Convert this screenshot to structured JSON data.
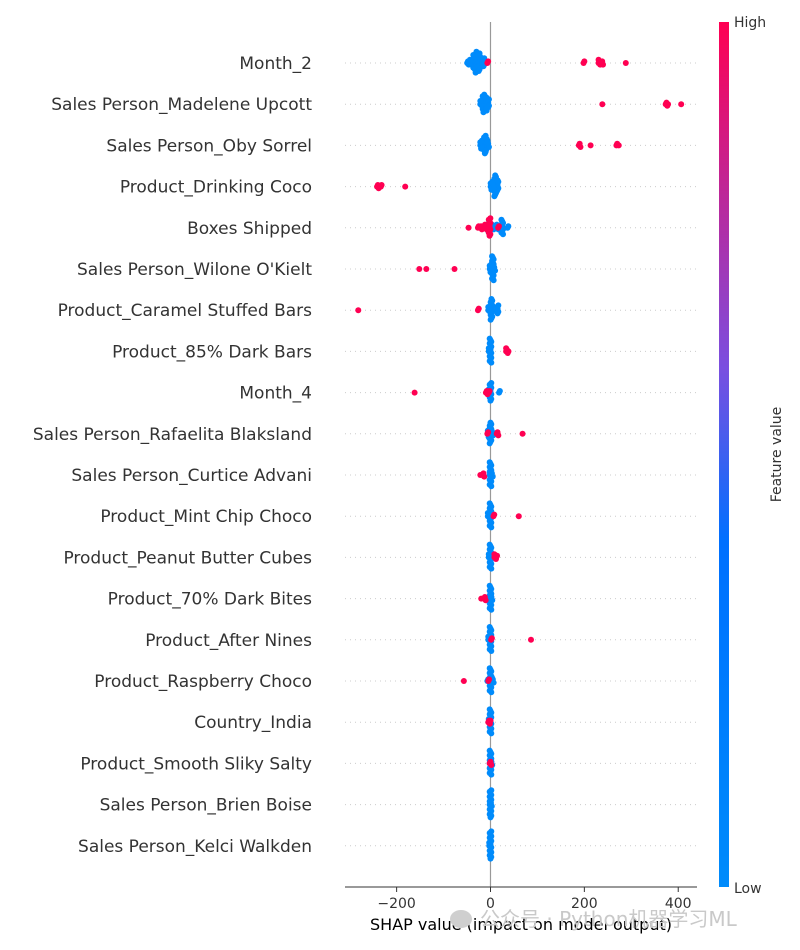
{
  "chart_data": {
    "type": "scatter",
    "title": "",
    "xlabel": "SHAP value (impact on model output)",
    "xlim": [
      -310,
      440
    ],
    "xticks": [
      -200,
      0,
      200,
      400
    ],
    "xtick_labels": [
      "−200",
      "0",
      "200",
      "400"
    ],
    "colorbar": {
      "label": "Feature value",
      "high": "High",
      "low": "Low",
      "low_color": "#008bfb",
      "high_color": "#ff0052"
    },
    "features": [
      {
        "name": "Month_2",
        "low": [
          [
            -30,
            14
          ],
          [
            -42,
            4
          ],
          [
            -22,
            8
          ],
          [
            -35,
            10
          ],
          [
            -15,
            6
          ],
          [
            -48,
            3
          ],
          [
            -25,
            12
          ]
        ],
        "high": [
          [
            -5,
            2
          ],
          [
            200,
            2
          ],
          [
            232,
            4
          ],
          [
            238,
            3
          ],
          [
            290,
            1
          ]
        ]
      },
      {
        "name": "Sales Person_Madelene Upcott",
        "low": [
          [
            -15,
            12
          ],
          [
            -10,
            10
          ],
          [
            -5,
            6
          ],
          [
            -20,
            4
          ],
          [
            -8,
            8
          ]
        ],
        "high": [
          [
            240,
            1
          ],
          [
            375,
            3
          ],
          [
            408,
            1
          ],
          [
            380,
            1
          ]
        ]
      },
      {
        "name": "Sales Person_Oby Sorrel",
        "low": [
          [
            -12,
            12
          ],
          [
            -20,
            6
          ],
          [
            -8,
            8
          ],
          [
            -5,
            4
          ]
        ],
        "high": [
          [
            190,
            3
          ],
          [
            215,
            1
          ],
          [
            270,
            2
          ],
          [
            275,
            1
          ]
        ]
      },
      {
        "name": "Product_Drinking Coco",
        "low": [
          [
            10,
            14
          ],
          [
            2,
            6
          ],
          [
            15,
            8
          ],
          [
            6,
            4
          ]
        ],
        "high": [
          [
            -240,
            3
          ],
          [
            -232,
            2
          ],
          [
            -180,
            1
          ]
        ]
      },
      {
        "name": "Boxes Shipped",
        "low": [
          [
            25,
            10
          ],
          [
            38,
            2
          ],
          [
            15,
            4
          ],
          [
            5,
            4
          ],
          [
            -5,
            6
          ]
        ],
        "high": [
          [
            -2,
            12
          ],
          [
            -10,
            4
          ],
          [
            -25,
            2
          ],
          [
            -45,
            1
          ],
          [
            18,
            2
          ],
          [
            -20,
            3
          ]
        ]
      },
      {
        "name": "Sales Person_Wilone O'Kielt",
        "low": [
          [
            5,
            16
          ],
          [
            0,
            6
          ],
          [
            8,
            4
          ]
        ],
        "high": [
          [
            -150,
            1
          ],
          [
            -135,
            1
          ],
          [
            -75,
            1
          ]
        ]
      },
      {
        "name": "Product_Caramel Stuffed Bars",
        "low": [
          [
            2,
            14
          ],
          [
            15,
            6
          ],
          [
            -3,
            4
          ]
        ],
        "high": [
          [
            -280,
            1
          ],
          [
            -25,
            2
          ]
        ]
      },
      {
        "name": "Product_85% Dark Bars",
        "low": [
          [
            0,
            16
          ],
          [
            -2,
            4
          ]
        ],
        "high": [
          [
            35,
            4
          ],
          [
            40,
            1
          ]
        ]
      },
      {
        "name": "Month_4",
        "low": [
          [
            0,
            12
          ],
          [
            20,
            2
          ],
          [
            -2,
            4
          ]
        ],
        "high": [
          [
            -160,
            1
          ],
          [
            -8,
            3
          ],
          [
            -2,
            2
          ]
        ]
      },
      {
        "name": "Sales Person_Rafaelita Blaksland",
        "low": [
          [
            0,
            14
          ],
          [
            -4,
            6
          ],
          [
            4,
            4
          ]
        ],
        "high": [
          [
            15,
            3
          ],
          [
            70,
            1
          ],
          [
            -5,
            2
          ]
        ]
      },
      {
        "name": "Sales Person_Curtice Advani",
        "low": [
          [
            0,
            16
          ],
          [
            3,
            4
          ]
        ],
        "high": [
          [
            -15,
            3
          ],
          [
            -20,
            1
          ]
        ]
      },
      {
        "name": "Product_Mint Chip Choco",
        "low": [
          [
            0,
            16
          ],
          [
            -4,
            4
          ]
        ],
        "high": [
          [
            8,
            2
          ],
          [
            62,
            1
          ]
        ]
      },
      {
        "name": "Product_Peanut Butter Cubes",
        "low": [
          [
            0,
            16
          ],
          [
            -2,
            4
          ]
        ],
        "high": [
          [
            10,
            4
          ],
          [
            14,
            2
          ]
        ]
      },
      {
        "name": "Product_70% Dark Bites",
        "low": [
          [
            0,
            16
          ],
          [
            2,
            4
          ]
        ],
        "high": [
          [
            -12,
            3
          ],
          [
            -18,
            1
          ]
        ]
      },
      {
        "name": "Product_After Nines",
        "low": [
          [
            0,
            16
          ],
          [
            -3,
            4
          ]
        ],
        "high": [
          [
            3,
            2
          ],
          [
            88,
            1
          ]
        ]
      },
      {
        "name": "Product_Raspberry Choco",
        "low": [
          [
            0,
            16
          ],
          [
            5,
            4
          ],
          [
            -5,
            2
          ]
        ],
        "high": [
          [
            -55,
            1
          ],
          [
            -3,
            2
          ]
        ]
      },
      {
        "name": "Country_India",
        "low": [
          [
            0,
            16
          ],
          [
            -2,
            4
          ]
        ],
        "high": [
          [
            -3,
            3
          ],
          [
            0,
            2
          ]
        ]
      },
      {
        "name": "Product_Smooth Sliky Salty",
        "low": [
          [
            0,
            16
          ],
          [
            2,
            4
          ]
        ],
        "high": [
          [
            0,
            3
          ],
          [
            2,
            1
          ]
        ]
      },
      {
        "name": "Sales Person_Brien Boise",
        "low": [
          [
            0,
            18
          ],
          [
            1,
            4
          ]
        ],
        "high": []
      },
      {
        "name": "Sales Person_Kelci Walkden",
        "low": [
          [
            0,
            18
          ],
          [
            -1,
            4
          ]
        ],
        "high": []
      }
    ]
  },
  "watermark": {
    "text": "公众号 · Python机器学习ML"
  }
}
